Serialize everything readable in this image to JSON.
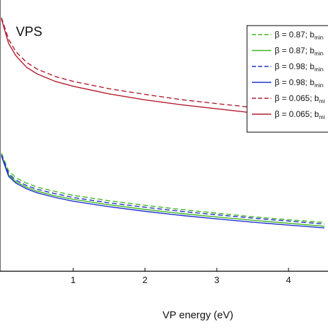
{
  "chart_data": {
    "type": "line",
    "panel_label": "VPS",
    "xlabel": "VP energy (eV)",
    "ylabel": "",
    "xlim": [
      -0.02,
      4.55
    ],
    "ylim": [
      0,
      1
    ],
    "x_ticks": [
      1,
      2,
      3,
      4
    ],
    "grid": false,
    "legend_position": "top-right",
    "series": [
      {
        "legend_prefix": "β = 0.87; b",
        "legend_sub": "min",
        "color": "#3cb521",
        "dash": "dashed",
        "x": [
          0,
          0.1,
          0.2,
          0.35,
          0.5,
          0.75,
          1,
          1.5,
          2,
          2.5,
          3,
          3.5,
          4,
          4.5
        ],
        "y": [
          0.435,
          0.37,
          0.345,
          0.325,
          0.31,
          0.294,
          0.28,
          0.26,
          0.243,
          0.228,
          0.214,
          0.201,
          0.19,
          0.18
        ]
      },
      {
        "legend_prefix": "β = 0.87; b",
        "legend_sub": "min",
        "color": "#3cb521",
        "dash": "solid",
        "x": [
          0,
          0.1,
          0.2,
          0.35,
          0.5,
          0.75,
          1,
          1.5,
          2,
          2.5,
          3,
          3.5,
          4,
          4.5
        ],
        "y": [
          0.43,
          0.355,
          0.33,
          0.31,
          0.295,
          0.278,
          0.265,
          0.245,
          0.228,
          0.213,
          0.2,
          0.188,
          0.177,
          0.166
        ]
      },
      {
        "legend_prefix": "β = 0.98; b",
        "legend_sub": "min",
        "color": "#1f2ed0",
        "dash": "dashed",
        "x": [
          0,
          0.1,
          0.2,
          0.35,
          0.5,
          0.75,
          1,
          1.5,
          2,
          2.5,
          3,
          3.5,
          4,
          4.5
        ],
        "y": [
          0.43,
          0.36,
          0.336,
          0.316,
          0.302,
          0.286,
          0.272,
          0.252,
          0.236,
          0.221,
          0.208,
          0.196,
          0.185,
          0.174
        ]
      },
      {
        "legend_prefix": "β = 0.98; b",
        "legend_sub": "min",
        "color": "#1f2ed0",
        "dash": "solid",
        "x": [
          0,
          0.1,
          0.2,
          0.35,
          0.5,
          0.75,
          1,
          1.5,
          2,
          2.5,
          3,
          3.5,
          4,
          4.5
        ],
        "y": [
          0.425,
          0.35,
          0.325,
          0.304,
          0.289,
          0.272,
          0.258,
          0.238,
          0.221,
          0.206,
          0.193,
          0.181,
          0.17,
          0.16
        ]
      },
      {
        "legend_prefix": "β = 0.065; b",
        "legend_sub": "mi",
        "color": "#b2182b",
        "dash": "dashed",
        "x": [
          0,
          0.1,
          0.2,
          0.35,
          0.5,
          0.75,
          1,
          1.5,
          2,
          2.5,
          3,
          3.5,
          4,
          4.5
        ],
        "y": [
          0.935,
          0.855,
          0.81,
          0.77,
          0.745,
          0.718,
          0.7,
          0.673,
          0.652,
          0.633,
          0.618,
          0.604,
          0.59,
          0.575
        ]
      },
      {
        "legend_prefix": "β = 0.065; b",
        "legend_sub": "mi",
        "color": "#b2182b",
        "dash": "solid",
        "x": [
          0,
          0.1,
          0.2,
          0.35,
          0.5,
          0.75,
          1,
          1.5,
          2,
          2.5,
          3,
          3.5,
          4,
          4.5
        ],
        "y": [
          0.93,
          0.84,
          0.795,
          0.752,
          0.727,
          0.7,
          0.682,
          0.654,
          0.632,
          0.614,
          0.599,
          0.584,
          0.571,
          0.556
        ]
      }
    ]
  }
}
